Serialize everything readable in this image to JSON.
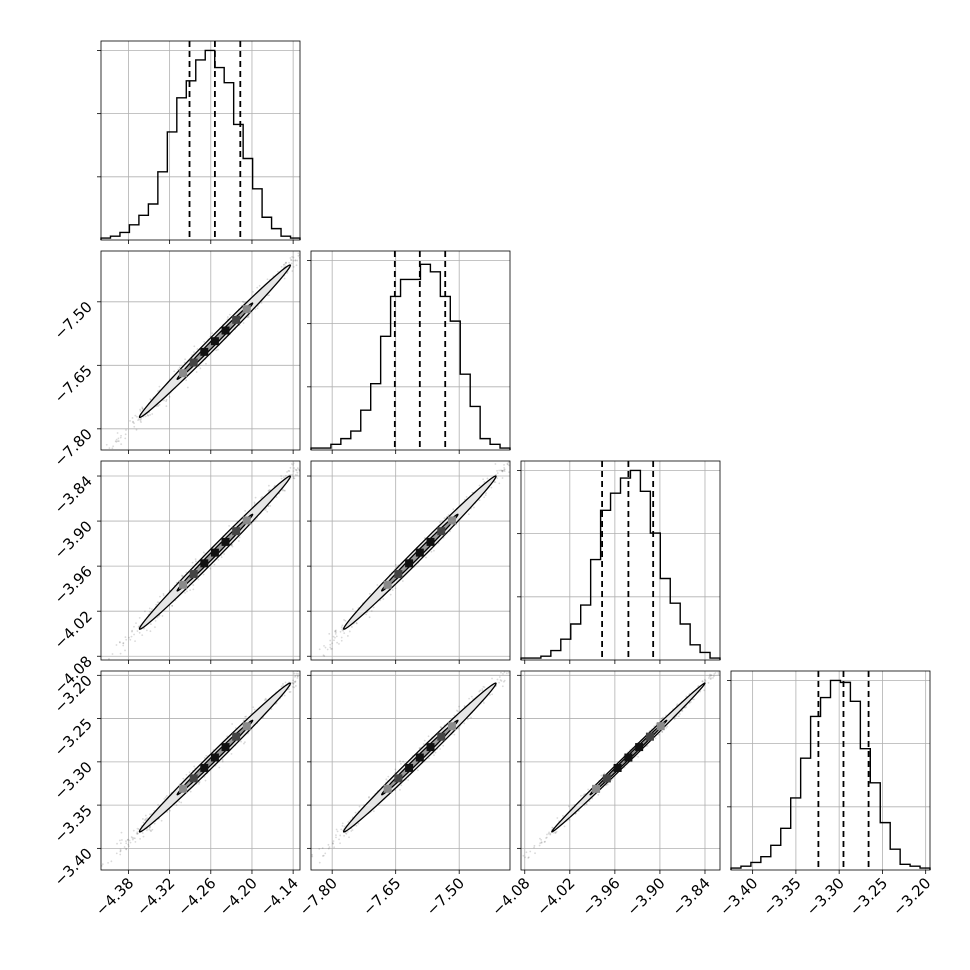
{
  "chart_data": {
    "type": "corner",
    "grid": true,
    "colors": {
      "line": "#000000",
      "grid": "#b0b0b0",
      "scatter": "#555555"
    },
    "parameters": [
      {
        "range": [
          -4.42,
          -4.13
        ],
        "ticks": [
          -4.38,
          -4.32,
          -4.26,
          -4.2,
          -4.14
        ],
        "tick_labels": [
          "−4.38",
          "−4.32",
          "−4.26",
          "−4.20",
          "−4.14"
        ],
        "quantiles": [
          -4.291,
          -4.254,
          -4.217
        ]
      },
      {
        "range": [
          -7.85,
          -7.38
        ],
        "ticks": [
          -7.8,
          -7.65,
          -7.5
        ],
        "tick_labels": [
          "−7.80",
          "−7.65",
          "−7.50"
        ],
        "quantiles": [
          -7.652,
          -7.593,
          -7.533
        ]
      },
      {
        "range": [
          -4.085,
          -3.82
        ],
        "ticks": [
          -4.08,
          -4.02,
          -3.96,
          -3.9,
          -3.84
        ],
        "tick_labels": [
          "−4.08",
          "−4.02",
          "−3.96",
          "−3.90",
          "−3.84"
        ],
        "quantiles": [
          -3.977,
          -3.942,
          -3.909
        ]
      },
      {
        "range": [
          -3.425,
          -3.195
        ],
        "ticks": [
          -3.4,
          -3.35,
          -3.3,
          -3.25,
          -3.2
        ],
        "tick_labels": [
          "−3.40",
          "−3.35",
          "−3.30",
          "−3.25",
          "−3.20"
        ],
        "quantiles": [
          -3.324,
          -3.295,
          -3.266
        ]
      }
    ],
    "histograms": [
      {
        "counts": [
          0.01,
          0.02,
          0.04,
          0.08,
          0.13,
          0.19,
          0.36,
          0.57,
          0.75,
          0.84,
          0.95,
          1.0,
          0.91,
          0.83,
          0.61,
          0.43,
          0.27,
          0.12,
          0.06,
          0.02,
          0.01
        ]
      },
      {
        "counts": [
          0.01,
          0.01,
          0.03,
          0.06,
          0.1,
          0.21,
          0.35,
          0.6,
          0.81,
          0.9,
          0.9,
          0.98,
          0.94,
          0.81,
          0.68,
          0.4,
          0.23,
          0.06,
          0.03,
          0.01
        ]
      },
      {
        "counts": [
          0.01,
          0.01,
          0.02,
          0.05,
          0.11,
          0.19,
          0.29,
          0.53,
          0.79,
          0.88,
          0.96,
          1.0,
          0.89,
          0.67,
          0.43,
          0.3,
          0.19,
          0.08,
          0.04,
          0.01
        ]
      },
      {
        "counts": [
          0.01,
          0.02,
          0.04,
          0.07,
          0.13,
          0.22,
          0.38,
          0.59,
          0.81,
          0.91,
          1.0,
          0.99,
          0.89,
          0.64,
          0.46,
          0.25,
          0.11,
          0.03,
          0.02,
          0.01
        ]
      }
    ],
    "pairs": [
      {
        "row": 1,
        "col": 0,
        "mean": [
          -4.254,
          -7.593
        ],
        "sd": [
          0.055,
          0.09
        ],
        "corr": 0.995
      },
      {
        "row": 2,
        "col": 0,
        "mean": [
          -4.254,
          -3.942
        ],
        "sd": [
          0.055,
          0.051
        ],
        "corr": 0.995
      },
      {
        "row": 2,
        "col": 1,
        "mean": [
          -7.593,
          -3.942
        ],
        "sd": [
          0.09,
          0.051
        ],
        "corr": 0.995
      },
      {
        "row": 3,
        "col": 0,
        "mean": [
          -4.254,
          -3.295
        ],
        "sd": [
          0.055,
          0.043
        ],
        "corr": 0.995
      },
      {
        "row": 3,
        "col": 1,
        "mean": [
          -7.593,
          -3.295
        ],
        "sd": [
          0.09,
          0.043
        ],
        "corr": 0.995
      },
      {
        "row": 3,
        "col": 2,
        "mean": [
          -3.942,
          -3.295
        ],
        "sd": [
          0.051,
          0.043
        ],
        "corr": 0.998
      }
    ]
  }
}
